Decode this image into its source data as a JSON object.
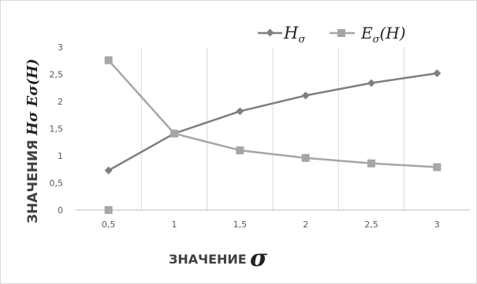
{
  "chart_data": {
    "type": "line",
    "categories": [
      "0,5",
      "1",
      "1,5",
      "2",
      "2,5",
      "3"
    ],
    "series": [
      {
        "name": "Hσ",
        "marker": "diamond",
        "color": "#7f7f7f",
        "values": [
          0.73,
          1.41,
          1.82,
          2.11,
          2.34,
          2.52
        ]
      },
      {
        "name": "Eσ(H)",
        "marker": "square",
        "color": "#a6a6a6",
        "values": [
          2.76,
          1.41,
          1.1,
          0.96,
          0.86,
          0.79
        ],
        "extra_point": {
          "category": "0,5",
          "value": 0
        }
      }
    ],
    "ylim": [
      0,
      3
    ],
    "yticks": [
      "0",
      "0,5",
      "1",
      "1,5",
      "2",
      "2,5",
      "3"
    ],
    "xlabel": "ЗНАЧЕНИЕ",
    "xlabel_symbol": "σ",
    "ylabel": "ЗНАЧЕНИЯ",
    "ylabel_symbols": "Hσ Eσ(H)",
    "legend": [
      "Hσ",
      "Eσ(H)"
    ],
    "legend_position": "top-right",
    "grid": "vertical"
  }
}
